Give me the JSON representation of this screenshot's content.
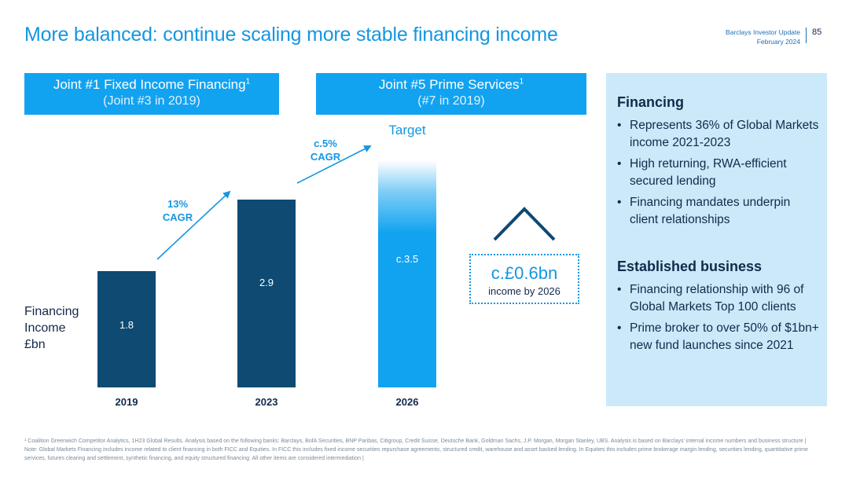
{
  "header": {
    "title": "More balanced: continue scaling more stable financing income",
    "meta_line1": "Barclays Investor Update",
    "meta_line2": "February 2024",
    "page_number": "85"
  },
  "rankings": [
    {
      "line1": "Joint #1 Fixed Income Financing",
      "sup": "1",
      "line2": "(Joint #3 in 2019)"
    },
    {
      "line1": "Joint #5 Prime Services",
      "sup": "1",
      "line2": "(#7 in 2019)"
    }
  ],
  "colors": {
    "accent": "#1596e0",
    "navy": "#0e4a72",
    "rank_bg": "#12a3f0",
    "panel_bg": "#cbe9f9"
  },
  "chart_data": {
    "type": "bar",
    "categories": [
      "2019",
      "2023",
      "2026"
    ],
    "values": [
      1.8,
      2.9,
      3.5
    ],
    "value_labels": [
      "1.8",
      "2.9",
      "c.3.5"
    ],
    "ylabel_lines": [
      "Financing",
      "Income",
      "£bn"
    ],
    "target_label": "Target",
    "cagr_annotations": [
      {
        "lines": [
          "13%",
          "CAGR"
        ]
      },
      {
        "lines": [
          "c.5%",
          "CAGR"
        ]
      }
    ],
    "ylim": [
      0,
      3.7
    ],
    "grid": false
  },
  "income_callout": {
    "value": "c.£0.6bn",
    "label": "income by 2026"
  },
  "panel": {
    "financing_heading": "Financing",
    "financing_bullets": [
      "Represents 36% of Global Markets income 2021-2023",
      "High returning, RWA-efficient secured lending",
      "Financing mandates underpin client relationships"
    ],
    "established_heading": "Established business",
    "established_bullets": [
      "Financing relationship with 96 of Global Markets Top 100 clients",
      "Prime broker to over 50% of $1bn+ new fund launches since 2021"
    ]
  },
  "footnote": "¹ Coalition Greenwich Competitor Analytics, 1H23 Global Results. Analysis based on the following banks: Barclays, BofA Securities, BNP Paribas, Citigroup, Credit Suisse, Deutsche Bank, Goldman Sachs, J.P. Morgan, Morgan Stanley, UBS. Analysis is based on Barclays' internal income numbers and business structure | Note: Global Markets Financing includes income related to client financing in both FICC and Equities. In FICC this includes fixed income securities repurchase agreements, structured credit, warehouse and asset backed lending. In Equities this includes prime brokerage margin lending, securities lending, quantitative prime services, futures clearing and settlement, synthetic financing, and equity structured financing. All other items are considered intermediation |"
}
